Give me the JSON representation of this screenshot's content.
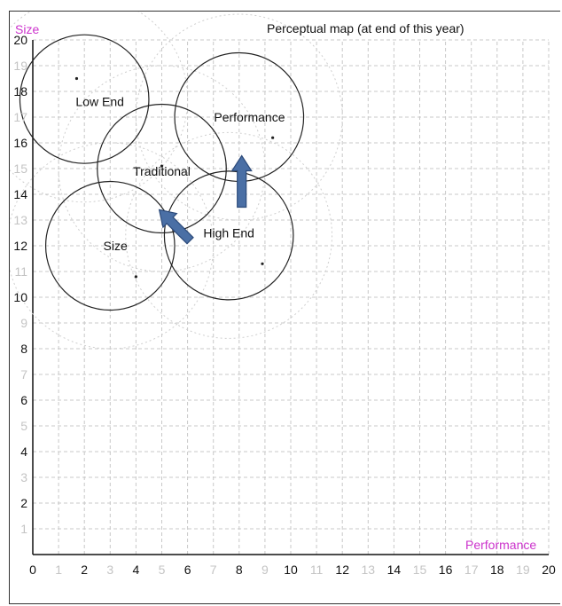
{
  "chart_data": {
    "type": "scatter",
    "title": "Perceptual map (at end of this year)",
    "xlabel": "Performance",
    "ylabel": "Size",
    "xlim": [
      0,
      20
    ],
    "ylim": [
      0,
      20
    ],
    "x_ticks": [
      "0",
      "1",
      "2",
      "3",
      "4",
      "5",
      "6",
      "7",
      "8",
      "9",
      "10",
      "11",
      "12",
      "13",
      "14",
      "15",
      "16",
      "17",
      "18",
      "19",
      "20"
    ],
    "y_ticks": [
      "0",
      "1",
      "2",
      "3",
      "4",
      "5",
      "6",
      "7",
      "8",
      "9",
      "10",
      "11",
      "12",
      "13",
      "14",
      "15",
      "16",
      "17",
      "18",
      "19",
      "20"
    ],
    "major_ticks_every": 2,
    "grid": true,
    "segments": [
      {
        "name": "Low End",
        "label_pos": [
          2.6,
          17.6
        ],
        "circle": {
          "cx": 2.0,
          "cy": 17.7,
          "r": 2.5
        },
        "ideal": [
          1.7,
          18.5
        ]
      },
      {
        "name": "Performance",
        "label_pos": [
          8.4,
          17.0
        ],
        "circle": {
          "cx": 8.0,
          "cy": 17.0,
          "r": 2.5
        },
        "ideal": [
          9.3,
          16.2
        ]
      },
      {
        "name": "Traditional",
        "label_pos": [
          5.0,
          14.9
        ],
        "circle": {
          "cx": 5.0,
          "cy": 15.0,
          "r": 2.5
        },
        "ideal": [
          5.0,
          15.1
        ]
      },
      {
        "name": "High End",
        "label_pos": [
          7.6,
          12.5
        ],
        "circle": {
          "cx": 7.6,
          "cy": 12.4,
          "r": 2.5
        },
        "ideal": [
          8.9,
          11.3
        ]
      },
      {
        "name": "Size",
        "label_pos": [
          3.2,
          12.0
        ],
        "circle": {
          "cx": 3.0,
          "cy": 12.0,
          "r": 2.5
        },
        "ideal": [
          4.0,
          10.8
        ]
      }
    ],
    "arrows": [
      {
        "from": [
          6.1,
          12.2
        ],
        "to": [
          4.9,
          13.4
        ]
      },
      {
        "from": [
          8.1,
          13.5
        ],
        "to": [
          8.1,
          15.5
        ]
      }
    ],
    "colors": {
      "axis_title": "#cc33cc",
      "arrow_fill": "#4a6fa5",
      "arrow_stroke": "#2c4a7a",
      "grid": "#c8c8c8",
      "circle": "#222222"
    }
  }
}
